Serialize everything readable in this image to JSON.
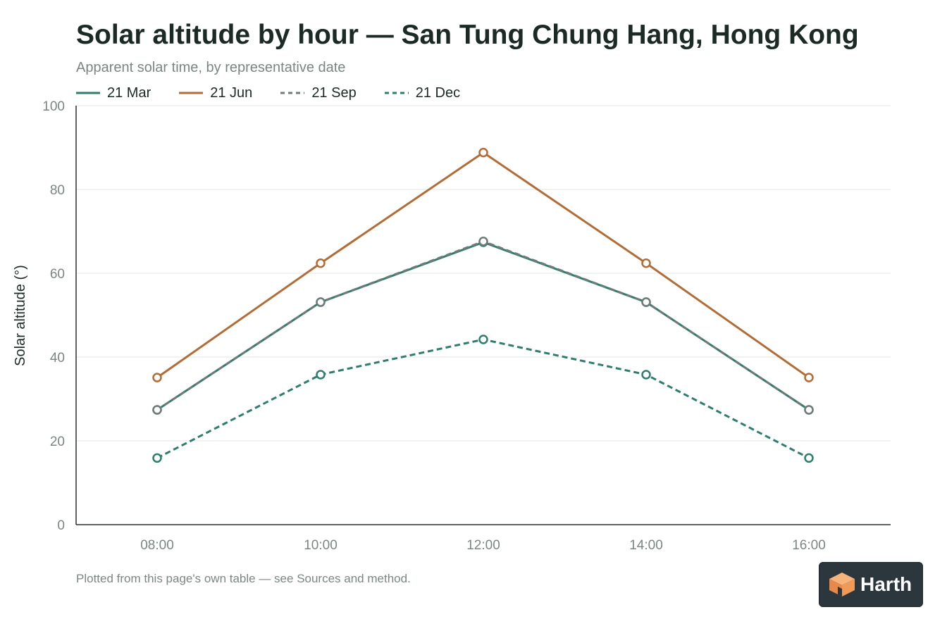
{
  "page": {
    "title": "Solar altitude by hour — San Tung Chung Hang, Hong Kong",
    "subtitle": "Apparent solar time, by representative date",
    "footnote": "Plotted from this page's own table — see Sources and method.",
    "brand": "Harth"
  },
  "chart_data": {
    "type": "line",
    "title": "Solar altitude by hour — San Tung Chung Hang, Hong Kong",
    "subtitle": "Apparent solar time, by representative date",
    "xlabel": "",
    "ylabel": "Solar altitude (°)",
    "categories": [
      "08:00",
      "10:00",
      "12:00",
      "14:00",
      "16:00"
    ],
    "ylim": [
      0,
      100
    ],
    "yticks": [
      0,
      20,
      40,
      60,
      80,
      100
    ],
    "grid": true,
    "legend_position": "top-left",
    "series": [
      {
        "name": "21 Mar",
        "values": [
          27.4,
          53.1,
          67.4,
          53.1,
          27.4
        ],
        "color": "#2e7d6e",
        "dash": "solid"
      },
      {
        "name": "21 Jun",
        "values": [
          35.1,
          62.4,
          88.8,
          62.4,
          35.1
        ],
        "color": "#b26c36",
        "dash": "solid"
      },
      {
        "name": "21 Sep",
        "values": [
          27.4,
          53.1,
          67.6,
          53.1,
          27.4
        ],
        "color": "#6f7b78",
        "dash": "dashed"
      },
      {
        "name": "21 Dec",
        "values": [
          15.9,
          35.8,
          44.2,
          35.8,
          15.9
        ],
        "color": "#2e7d6e",
        "dash": "dashed"
      }
    ]
  }
}
